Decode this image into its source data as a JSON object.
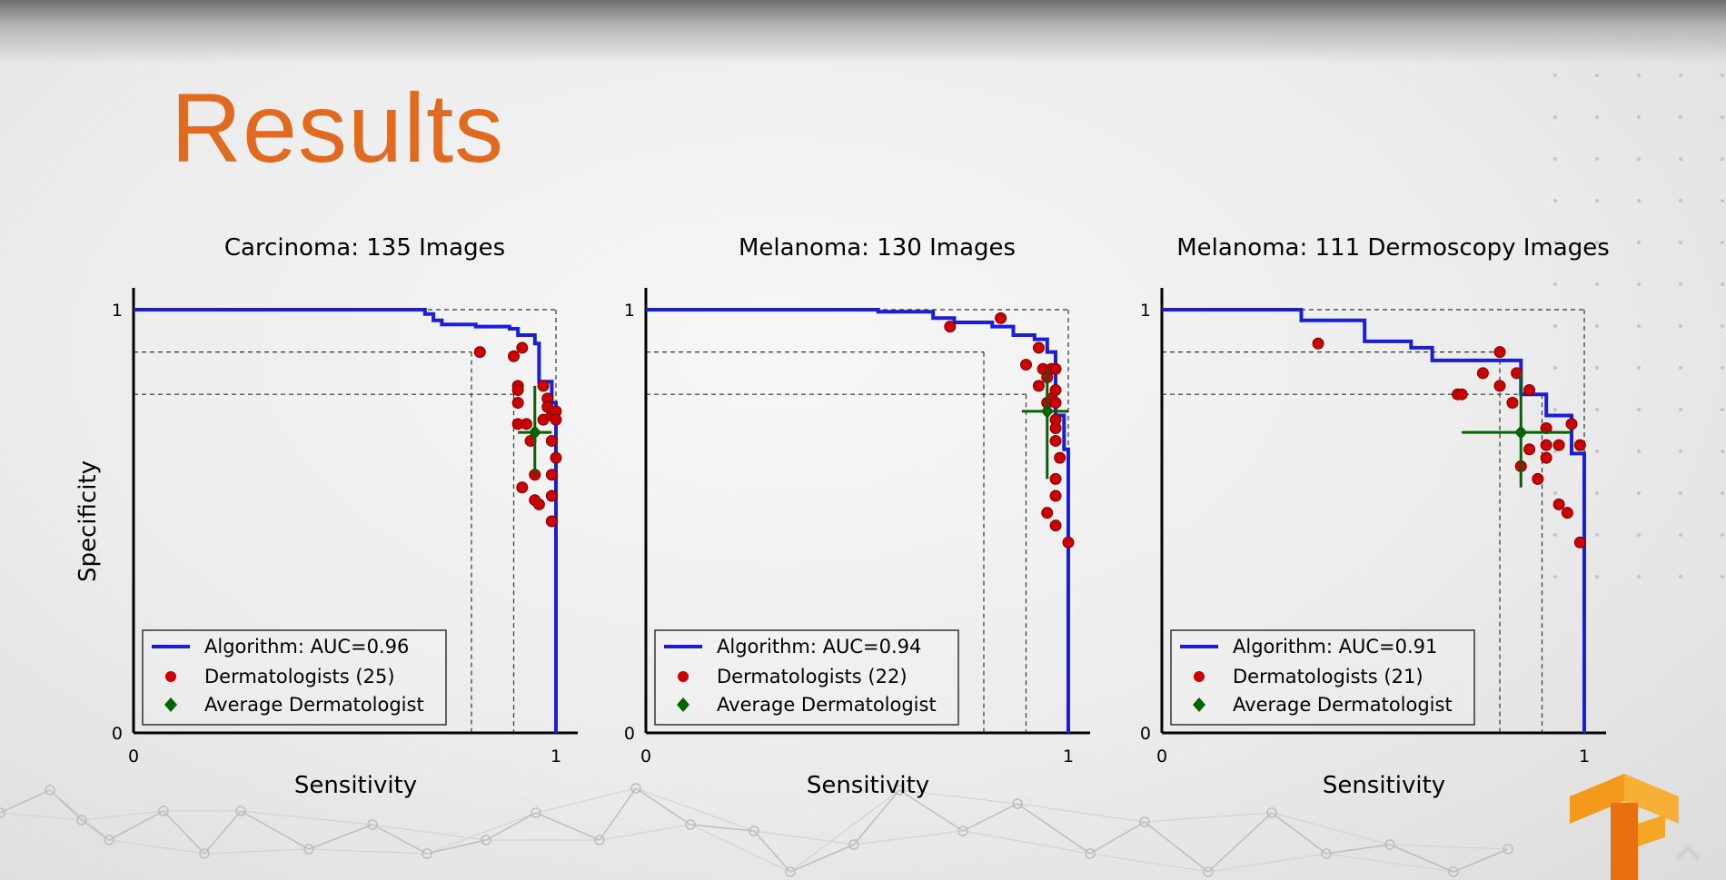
{
  "slide": {
    "title": "Results",
    "colors": {
      "title": "#e06a1f",
      "algorithm": "#1a1fd6",
      "dermatologists": "#cc0000",
      "average": "#006400",
      "logo": "#f39a1c"
    },
    "logo_icon": "tensorflow-logo-icon"
  },
  "chart_data": [
    {
      "type": "line",
      "title": "Carcinoma: 135 Images",
      "xlabel": "Sensitivity",
      "ylabel": "Specificity",
      "xlim": [
        0,
        1
      ],
      "ylim": [
        0,
        1
      ],
      "xticks": [
        "0",
        "1"
      ],
      "yticks": [
        "0",
        "1"
      ],
      "legend_position": "lower-left",
      "reference_lines": {
        "x": [
          0.8,
          0.9,
          1.0
        ],
        "y": [
          0.9,
          0.8,
          1.0
        ]
      },
      "legend": [
        "Algorithm: AUC=0.96",
        "Dermatologists (25)",
        "Average Dermatologist"
      ],
      "algorithm_curve": [
        [
          0,
          1
        ],
        [
          0.69,
          1
        ],
        [
          0.69,
          0.99
        ],
        [
          0.71,
          0.99
        ],
        [
          0.71,
          0.975
        ],
        [
          0.73,
          0.975
        ],
        [
          0.73,
          0.965
        ],
        [
          0.81,
          0.965
        ],
        [
          0.81,
          0.96
        ],
        [
          0.89,
          0.96
        ],
        [
          0.89,
          0.955
        ],
        [
          0.91,
          0.955
        ],
        [
          0.91,
          0.94
        ],
        [
          0.95,
          0.94
        ],
        [
          0.95,
          0.92
        ],
        [
          0.96,
          0.92
        ],
        [
          0.96,
          0.83
        ],
        [
          0.99,
          0.83
        ],
        [
          0.99,
          0.78
        ],
        [
          1,
          0.78
        ],
        [
          1,
          0
        ]
      ],
      "dermatologists": [
        [
          0.82,
          0.9
        ],
        [
          0.9,
          0.89
        ],
        [
          0.92,
          0.91
        ],
        [
          0.91,
          0.82
        ],
        [
          0.91,
          0.81
        ],
        [
          0.91,
          0.78
        ],
        [
          0.91,
          0.73
        ],
        [
          0.92,
          0.58
        ],
        [
          0.93,
          0.73
        ],
        [
          0.94,
          0.69
        ],
        [
          0.95,
          0.61
        ],
        [
          0.95,
          0.55
        ],
        [
          0.96,
          0.54
        ],
        [
          0.97,
          0.74
        ],
        [
          0.97,
          0.82
        ],
        [
          0.98,
          0.79
        ],
        [
          0.98,
          0.77
        ],
        [
          0.99,
          0.75
        ],
        [
          0.99,
          0.61
        ],
        [
          0.99,
          0.56
        ],
        [
          0.99,
          0.69
        ],
        [
          0.99,
          0.5
        ],
        [
          1,
          0.76
        ],
        [
          1,
          0.74
        ],
        [
          1,
          0.65
        ]
      ],
      "average": {
        "x": 0.95,
        "y": 0.71,
        "xerr": [
          0.91,
          0.99
        ],
        "yerr": [
          0.61,
          0.82
        ]
      }
    },
    {
      "type": "line",
      "title": "Melanoma: 130 Images",
      "xlabel": "Sensitivity",
      "ylabel": "",
      "xlim": [
        0,
        1
      ],
      "ylim": [
        0,
        1
      ],
      "xticks": [
        "0",
        "1"
      ],
      "yticks": [
        "0",
        "1"
      ],
      "legend_position": "lower-left",
      "reference_lines": {
        "x": [
          0.8,
          0.9,
          1.0
        ],
        "y": [
          0.9,
          0.8,
          1.0
        ]
      },
      "legend": [
        "Algorithm: AUC=0.94",
        "Dermatologists (22)",
        "Average Dermatologist"
      ],
      "algorithm_curve": [
        [
          0,
          1
        ],
        [
          0.55,
          1
        ],
        [
          0.55,
          0.995
        ],
        [
          0.68,
          0.995
        ],
        [
          0.68,
          0.98
        ],
        [
          0.73,
          0.98
        ],
        [
          0.73,
          0.97
        ],
        [
          0.82,
          0.97
        ],
        [
          0.82,
          0.96
        ],
        [
          0.87,
          0.96
        ],
        [
          0.87,
          0.94
        ],
        [
          0.92,
          0.94
        ],
        [
          0.92,
          0.93
        ],
        [
          0.95,
          0.93
        ],
        [
          0.95,
          0.9
        ],
        [
          0.97,
          0.9
        ],
        [
          0.97,
          0.75
        ],
        [
          0.99,
          0.75
        ],
        [
          0.99,
          0.67
        ],
        [
          1,
          0.67
        ],
        [
          1,
          0
        ]
      ],
      "dermatologists": [
        [
          0.72,
          0.96
        ],
        [
          0.84,
          0.98
        ],
        [
          0.9,
          0.87
        ],
        [
          0.93,
          0.91
        ],
        [
          0.93,
          0.82
        ],
        [
          0.94,
          0.86
        ],
        [
          0.95,
          0.84
        ],
        [
          0.96,
          0.86
        ],
        [
          0.95,
          0.52
        ],
        [
          0.95,
          0.78
        ],
        [
          0.96,
          0.79
        ],
        [
          0.97,
          0.86
        ],
        [
          0.97,
          0.81
        ],
        [
          0.97,
          0.78
        ],
        [
          0.97,
          0.74
        ],
        [
          0.97,
          0.72
        ],
        [
          0.97,
          0.69
        ],
        [
          0.97,
          0.6
        ],
        [
          0.97,
          0.56
        ],
        [
          0.97,
          0.49
        ],
        [
          0.98,
          0.65
        ],
        [
          1,
          0.45
        ]
      ],
      "average": {
        "x": 0.95,
        "y": 0.76,
        "xerr": [
          0.89,
          1.0
        ],
        "yerr": [
          0.6,
          0.86
        ]
      }
    },
    {
      "type": "line",
      "title": "Melanoma: 111 Dermoscopy Images",
      "xlabel": "Sensitivity",
      "ylabel": "",
      "xlim": [
        0,
        1
      ],
      "ylim": [
        0,
        1
      ],
      "xticks": [
        "0",
        "1"
      ],
      "yticks": [
        "0",
        "1"
      ],
      "legend_position": "lower-left",
      "reference_lines": {
        "x": [
          0.8,
          0.9,
          1.0
        ],
        "y": [
          0.9,
          0.8,
          1.0
        ]
      },
      "legend": [
        "Algorithm: AUC=0.91",
        "Dermatologists (21)",
        "Average Dermatologist"
      ],
      "algorithm_curve": [
        [
          0,
          1
        ],
        [
          0.33,
          1
        ],
        [
          0.33,
          0.975
        ],
        [
          0.48,
          0.975
        ],
        [
          0.48,
          0.925
        ],
        [
          0.59,
          0.925
        ],
        [
          0.59,
          0.91
        ],
        [
          0.64,
          0.91
        ],
        [
          0.64,
          0.88
        ],
        [
          0.85,
          0.88
        ],
        [
          0.85,
          0.8
        ],
        [
          0.91,
          0.8
        ],
        [
          0.91,
          0.75
        ],
        [
          0.97,
          0.75
        ],
        [
          0.97,
          0.66
        ],
        [
          1,
          0.66
        ],
        [
          1,
          0
        ]
      ],
      "dermatologists": [
        [
          0.37,
          0.92
        ],
        [
          0.7,
          0.8
        ],
        [
          0.71,
          0.8
        ],
        [
          0.76,
          0.85
        ],
        [
          0.8,
          0.9
        ],
        [
          0.8,
          0.82
        ],
        [
          0.83,
          0.78
        ],
        [
          0.84,
          0.85
        ],
        [
          0.85,
          0.63
        ],
        [
          0.87,
          0.67
        ],
        [
          0.87,
          0.81
        ],
        [
          0.89,
          0.6
        ],
        [
          0.91,
          0.72
        ],
        [
          0.91,
          0.68
        ],
        [
          0.91,
          0.65
        ],
        [
          0.94,
          0.68
        ],
        [
          0.94,
          0.54
        ],
        [
          0.96,
          0.52
        ],
        [
          0.97,
          0.73
        ],
        [
          0.99,
          0.68
        ],
        [
          0.99,
          0.45
        ]
      ],
      "average": {
        "x": 0.85,
        "y": 0.71,
        "xerr": [
          0.71,
          0.97
        ],
        "yerr": [
          0.58,
          0.85
        ]
      }
    }
  ]
}
